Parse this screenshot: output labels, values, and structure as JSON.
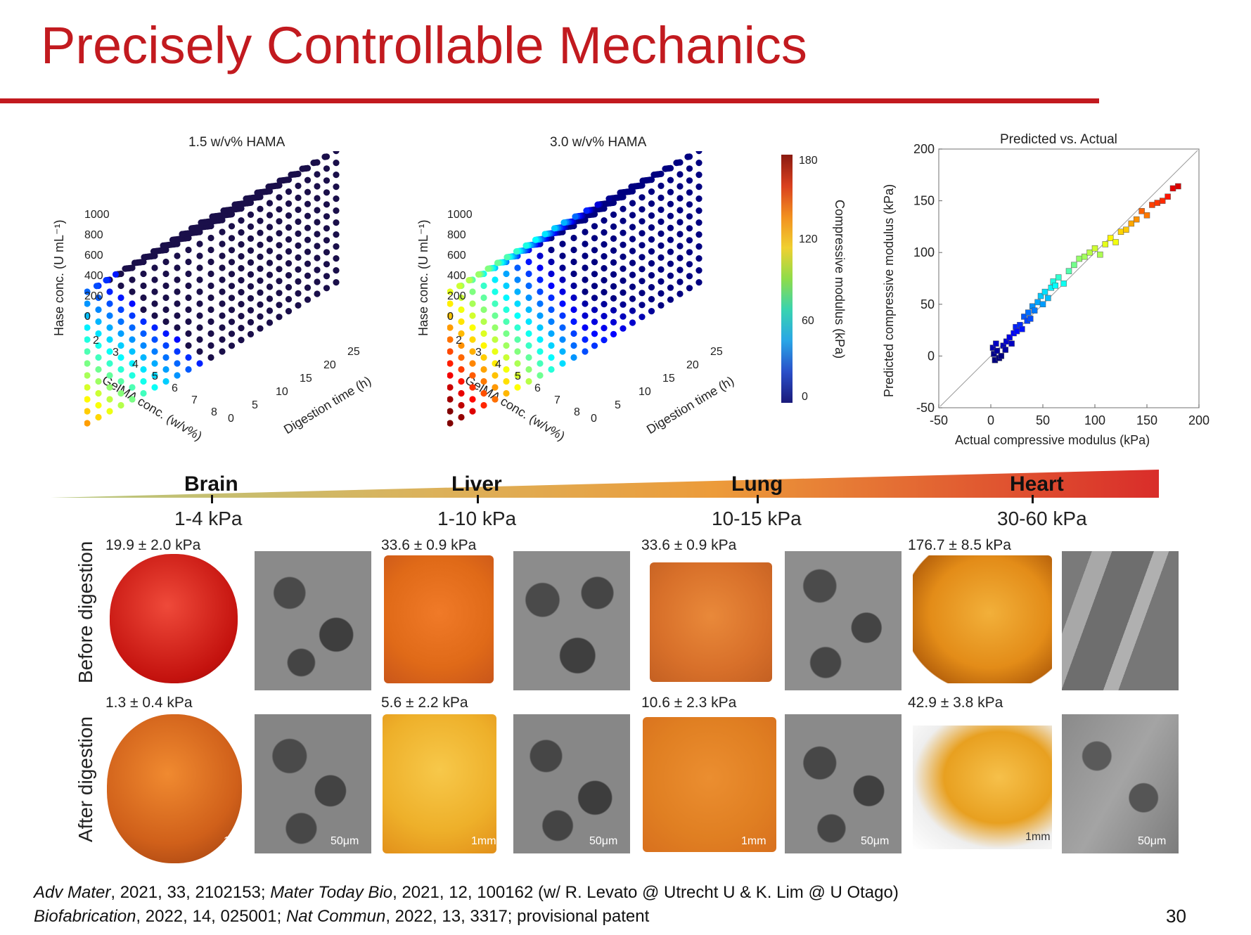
{
  "slide": {
    "title": "Precisely Controllable Mechanics",
    "page_number": "30"
  },
  "plot3d_left": {
    "title": "1.5 w/v% HAMA",
    "z_label": "Hase conc. (U mL⁻¹)",
    "x_label": "GelMA conc. (w/v%)",
    "y_label": "Digestion time (h)",
    "z_ticks": [
      "1000",
      "800",
      "600",
      "400",
      "200",
      "0"
    ],
    "x_ticks": [
      "2",
      "3",
      "4",
      "5",
      "6",
      "7",
      "8"
    ],
    "y_ticks": [
      "0",
      "5",
      "10",
      "15",
      "20",
      "25"
    ]
  },
  "plot3d_right": {
    "title": "3.0 w/v% HAMA",
    "z_label": "Hase conc. (U mL⁻¹)",
    "x_label": "GelMA conc. (w/v%)",
    "y_label": "Digestion time (h)",
    "z_ticks": [
      "1000",
      "800",
      "600",
      "400",
      "200",
      "0"
    ],
    "x_ticks": [
      "2",
      "3",
      "4",
      "5",
      "6",
      "7",
      "8"
    ],
    "y_ticks": [
      "0",
      "5",
      "10",
      "15",
      "20",
      "25"
    ]
  },
  "colorbar": {
    "label": "Compressive modulus (kPa)",
    "ticks": [
      "180",
      "120",
      "60",
      "0"
    ]
  },
  "chart_data": {
    "type": "scatter",
    "title": "Predicted vs. Actual",
    "xlabel": "Actual compressive modulus (kPa)",
    "ylabel": "Predicted compressive modulus (kPa)",
    "xlim": [
      -50,
      200
    ],
    "ylim": [
      -50,
      200
    ],
    "x_ticks": [
      "-50",
      "0",
      "50",
      "100",
      "150",
      "200"
    ],
    "y_ticks": [
      "200",
      "150",
      "100",
      "50",
      "0",
      "-50"
    ],
    "reference_line": "y = x",
    "marker": "square",
    "x": [
      2,
      3,
      4,
      5,
      6,
      8,
      10,
      12,
      14,
      15,
      18,
      20,
      22,
      24,
      25,
      28,
      30,
      32,
      35,
      36,
      38,
      40,
      42,
      45,
      48,
      50,
      52,
      55,
      58,
      60,
      62,
      65,
      70,
      75,
      80,
      85,
      90,
      95,
      100,
      105,
      110,
      115,
      120,
      125,
      130,
      135,
      140,
      145,
      150,
      155,
      160,
      165,
      170,
      175,
      180
    ],
    "y": [
      8,
      2,
      -4,
      12,
      5,
      -2,
      0,
      10,
      6,
      14,
      18,
      12,
      22,
      28,
      24,
      30,
      26,
      38,
      34,
      42,
      36,
      48,
      44,
      52,
      58,
      50,
      62,
      56,
      66,
      72,
      68,
      76,
      70,
      82,
      88,
      94,
      96,
      100,
      104,
      98,
      108,
      114,
      110,
      120,
      122,
      128,
      132,
      140,
      136,
      146,
      148,
      150,
      154,
      162,
      164
    ],
    "color_scale": "jet by predicted value (0 blue to 180 red)"
  },
  "organs": [
    {
      "name": "Brain",
      "range": "1-4 kPa"
    },
    {
      "name": "Liver",
      "range": "1-10 kPa"
    },
    {
      "name": "Lung",
      "range": "10-15 kPa"
    },
    {
      "name": "Heart",
      "range": "30-60 kPa"
    }
  ],
  "rows": {
    "before": "Before digestion",
    "after": "After digestion"
  },
  "measurements": {
    "before": [
      "19.9 ± 2.0 kPa",
      "33.6 ± 0.9 kPa",
      "33.6 ± 0.9 kPa",
      "176.7 ± 8.5 kPa"
    ],
    "after": [
      "1.3 ± 0.4 kPa",
      "5.6 ± 2.2 kPa",
      "10.6 ± 2.3 kPa",
      "42.9 ± 3.8 kPa"
    ]
  },
  "scale_bars": {
    "photo": "1mm",
    "sem": "50μm"
  },
  "citations": {
    "line1_parts": [
      {
        "t": "Adv Mater",
        "i": true
      },
      {
        "t": ", 2021, 33, 2102153; ",
        "i": false
      },
      {
        "t": "Mater Today Bio",
        "i": true
      },
      {
        "t": ", 2021, 12, 100162 (w/ R. Levato @ Utrecht U & K. Lim @ U Otago)",
        "i": false
      }
    ],
    "line2_parts": [
      {
        "t": "Biofabrication",
        "i": true
      },
      {
        "t": ", 2022, 14, 025001; ",
        "i": false
      },
      {
        "t": "Nat Commun",
        "i": true
      },
      {
        "t": ", 2022, 13, 3317; provisional patent",
        "i": false
      }
    ]
  }
}
